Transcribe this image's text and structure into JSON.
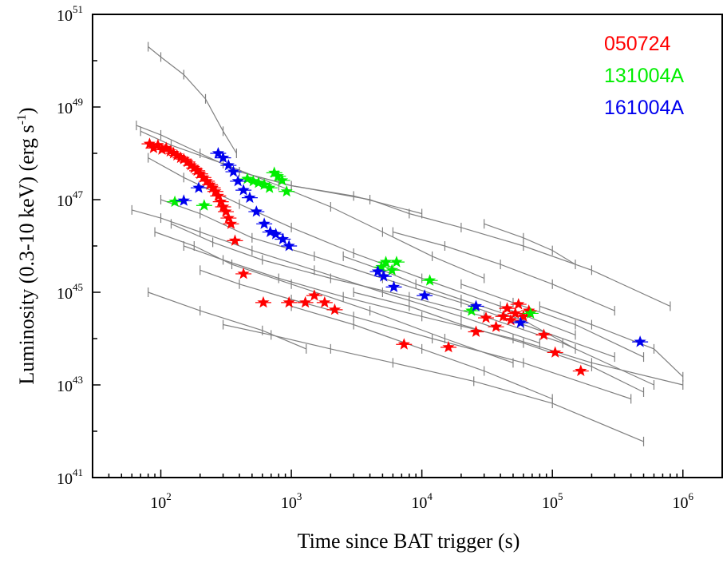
{
  "chart_data": {
    "type": "scatter",
    "xlabel": "Time since BAT trigger (s)",
    "ylabel_parts": {
      "main": "Luminosity  (0.3-10 keV) (erg s",
      "sup": "-1",
      "close": ")"
    },
    "x_scale": "log",
    "y_scale": "log",
    "xlim": [
      30,
      2000000
    ],
    "ylim": [
      1e+41,
      1e+51
    ],
    "x_ticks": [
      {
        "base": "10",
        "exp": "2",
        "value": 100
      },
      {
        "base": "10",
        "exp": "3",
        "value": 1000
      },
      {
        "base": "10",
        "exp": "4",
        "value": 10000
      },
      {
        "base": "10",
        "exp": "5",
        "value": 100000
      },
      {
        "base": "10",
        "exp": "6",
        "value": 1000000
      }
    ],
    "y_ticks": [
      {
        "base": "10",
        "exp": "41",
        "value": 1e+41
      },
      {
        "base": "10",
        "exp": "43",
        "value": 1e+43
      },
      {
        "base": "10",
        "exp": "45",
        "value": 1e+45
      },
      {
        "base": "10",
        "exp": "47",
        "value": 1e+47
      },
      {
        "base": "10",
        "exp": "49",
        "value": 1e+49
      },
      {
        "base": "10",
        "exp": "51",
        "value": 1e+51
      }
    ],
    "grid": false,
    "legend_position": "top-right",
    "colors": {
      "background_lightcurves": "#808080",
      "050724": "#ff0000",
      "131004A": "#00ee00",
      "161004A": "#0000ee"
    },
    "background_lightcurves": [
      {
        "x": [
          80,
          100,
          150,
          220,
          300,
          380
        ],
        "y": [
          2e+50,
          1.2e+50,
          5e+49,
          1.5e+49,
          3e+48,
          1e+48
        ]
      },
      {
        "x": [
          65,
          100,
          200,
          400,
          1000,
          3000,
          10000
        ],
        "y": [
          4e+48,
          2.5e+48,
          1e+48,
          4e+47,
          2e+47,
          1.2e+47,
          5e+46
        ]
      },
      {
        "x": [
          70,
          120,
          300,
          800,
          2000,
          5000,
          12000,
          30000
        ],
        "y": [
          3e+48,
          1.5e+48,
          6e+47,
          2e+47,
          7e+46,
          2e+46,
          6e+45,
          2e+45
        ]
      },
      {
        "x": [
          60,
          100,
          200,
          500,
          1500,
          5000,
          20000,
          80000
        ],
        "y": [
          6e+46,
          4e+46,
          2e+46,
          8e+45,
          3e+45,
          1e+45,
          3e+44,
          8e+43
        ]
      },
      {
        "x": [
          80,
          150,
          400,
          1000,
          3000,
          10000,
          40000,
          150000
        ],
        "y": [
          8e+47,
          3e+47,
          8e+46,
          2.5e+46,
          7e+45,
          2e+45,
          5e+44,
          1.2e+44
        ]
      },
      {
        "x": [
          100,
          200,
          500,
          1500,
          5000,
          20000,
          60000,
          300000
        ],
        "y": [
          1e+47,
          5e+46,
          1.5e+46,
          6e+45,
          2e+45,
          6e+44,
          2e+44,
          4e+43
        ]
      },
      {
        "x": [
          90,
          180,
          350,
          1000,
          4000,
          15000,
          50000
        ],
        "y": [
          2e+46,
          1e+46,
          4e+45,
          1.5e+45,
          4e+44,
          1e+44,
          3e+43
        ]
      },
      {
        "x": [
          120,
          250,
          600,
          2000,
          8000,
          30000,
          120000,
          600000
        ],
        "y": [
          3e+46,
          1.2e+46,
          5e+45,
          2e+45,
          8e+44,
          3e+44,
          8e+43,
          1e+43
        ]
      },
      {
        "x": [
          150,
          300,
          800,
          2500,
          10000,
          50000,
          200000,
          1000000
        ],
        "y": [
          1e+46,
          5e+45,
          2e+45,
          8e+44,
          3e+44,
          1e+44,
          3e+43,
          1e+43
        ]
      },
      {
        "x": [
          200,
          400,
          1000,
          3000,
          12000,
          60000,
          400000
        ],
        "y": [
          3e+45,
          1.5e+45,
          7e+44,
          3e+44,
          1e+44,
          3e+43,
          5e+42
        ]
      },
      {
        "x": [
          300,
          700,
          2000,
          6000,
          25000,
          100000,
          500000
        ],
        "y": [
          2e+44,
          1.2e+44,
          6e+43,
          3e+43,
          1.2e+43,
          4e+42,
          6e+41
        ]
      },
      {
        "x": [
          80,
          200,
          600,
          1300
        ],
        "y": [
          1e+45,
          4e+44,
          1.5e+44,
          6e+43
        ]
      },
      {
        "x": [
          400,
          1000,
          4000,
          8000,
          20000,
          60000,
          200000,
          800000
        ],
        "y": [
          4e+47,
          2e+47,
          1e+47,
          5e+46,
          2.5e+46,
          1e+46,
          3e+45,
          5e+44
        ]
      },
      {
        "x": [
          2500,
          5000,
          9000,
          20000,
          60000,
          150000
        ],
        "y": [
          6e+45,
          3e+45,
          1.5e+45,
          7e+44,
          2.5e+44,
          6e+43
        ]
      },
      {
        "x": [
          6000,
          15000,
          40000,
          100000,
          300000
        ],
        "y": [
          2e+46,
          1e+46,
          4e+45,
          1.5e+45,
          4e+44
        ]
      },
      {
        "x": [
          30000,
          60000,
          100000,
          150000
        ],
        "y": [
          3e+46,
          1.5e+46,
          8e+45,
          4e+45
        ]
      },
      {
        "x": [
          1000,
          3000,
          10000,
          30000,
          100000
        ],
        "y": [
          5e+44,
          2e+44,
          6e+43,
          2e+43,
          5e+42
        ]
      },
      {
        "x": [
          3000,
          8000,
          20000,
          60000,
          200000,
          500000
        ],
        "y": [
          1e+45,
          5e+44,
          2e+44,
          8e+43,
          2.5e+43,
          7e+42
        ]
      },
      {
        "x": [
          20000,
          50000,
          150000,
          500000
        ],
        "y": [
          1.5e+45,
          6e+44,
          2e+44,
          4e+43
        ]
      },
      {
        "x": [
          80000,
          200000,
          600000,
          1000000
        ],
        "y": [
          5e+44,
          2e+44,
          6e+43,
          1.5e+43
        ]
      }
    ],
    "series": [
      {
        "name": "050724",
        "color": "#ff0000",
        "points": [
          {
            "x": 82,
            "y": 1.6e+48
          },
          {
            "x": 88,
            "y": 1.3e+48
          },
          {
            "x": 95,
            "y": 1.5e+48
          },
          {
            "x": 102,
            "y": 1.2e+48
          },
          {
            "x": 110,
            "y": 1.3e+48
          },
          {
            "x": 118,
            "y": 1.1e+48
          },
          {
            "x": 125,
            "y": 1e+48
          },
          {
            "x": 133,
            "y": 9e+47
          },
          {
            "x": 142,
            "y": 8e+47
          },
          {
            "x": 150,
            "y": 7.5e+47
          },
          {
            "x": 160,
            "y": 6.5e+47
          },
          {
            "x": 170,
            "y": 5.5e+47
          },
          {
            "x": 180,
            "y": 4.8e+47
          },
          {
            "x": 190,
            "y": 4.2e+47
          },
          {
            "x": 200,
            "y": 3.6e+47
          },
          {
            "x": 212,
            "y": 3e+47
          },
          {
            "x": 225,
            "y": 2.5e+47
          },
          {
            "x": 238,
            "y": 2.1e+47
          },
          {
            "x": 250,
            "y": 1.8e+47
          },
          {
            "x": 262,
            "y": 1.5e+47
          },
          {
            "x": 275,
            "y": 1.2e+47
          },
          {
            "x": 288,
            "y": 9e+46
          },
          {
            "x": 300,
            "y": 7e+46
          },
          {
            "x": 315,
            "y": 5.5e+46
          },
          {
            "x": 330,
            "y": 4e+46
          },
          {
            "x": 345,
            "y": 3e+46
          },
          {
            "x": 370,
            "y": 1.3e+46
          },
          {
            "x": 430,
            "y": 2.5e+45
          },
          {
            "x": 610,
            "y": 6e+44
          },
          {
            "x": 960,
            "y": 6e+44
          },
          {
            "x": 1280,
            "y": 6e+44
          },
          {
            "x": 1500,
            "y": 8.5e+44
          },
          {
            "x": 1800,
            "y": 6e+44
          },
          {
            "x": 2150,
            "y": 4.2e+44
          },
          {
            "x": 7300,
            "y": 7.5e+43
          },
          {
            "x": 16000,
            "y": 6.5e+43
          },
          {
            "x": 26000,
            "y": 1.4e+44
          },
          {
            "x": 31000,
            "y": 2.8e+44
          },
          {
            "x": 37000,
            "y": 1.8e+44
          },
          {
            "x": 42000,
            "y": 3e+44
          },
          {
            "x": 45000,
            "y": 4.5e+44
          },
          {
            "x": 48000,
            "y": 2.5e+44
          },
          {
            "x": 52000,
            "y": 3.5e+44
          },
          {
            "x": 55000,
            "y": 5.5e+44
          },
          {
            "x": 60000,
            "y": 3e+44
          },
          {
            "x": 66000,
            "y": 4e+44
          },
          {
            "x": 86000,
            "y": 1.2e+44
          },
          {
            "x": 105000,
            "y": 5e+43
          },
          {
            "x": 165000,
            "y": 2e+43
          }
        ]
      },
      {
        "name": "131004A",
        "color": "#00ee00",
        "points": [
          {
            "x": 128,
            "y": 9e+46
          },
          {
            "x": 215,
            "y": 7.5e+46
          },
          {
            "x": 460,
            "y": 2.8e+47
          },
          {
            "x": 510,
            "y": 2.5e+47
          },
          {
            "x": 560,
            "y": 2.3e+47
          },
          {
            "x": 620,
            "y": 2.1e+47
          },
          {
            "x": 680,
            "y": 1.8e+47
          },
          {
            "x": 740,
            "y": 3.8e+47
          },
          {
            "x": 790,
            "y": 3.2e+47
          },
          {
            "x": 850,
            "y": 2.6e+47
          },
          {
            "x": 920,
            "y": 1.5e+47
          },
          {
            "x": 4900,
            "y": 3.5e+45
          },
          {
            "x": 5300,
            "y": 4.5e+45
          },
          {
            "x": 5900,
            "y": 3e+45
          },
          {
            "x": 6400,
            "y": 4.5e+45
          },
          {
            "x": 11500,
            "y": 1.8e+45
          },
          {
            "x": 24000,
            "y": 4e+44
          },
          {
            "x": 68000,
            "y": 3.5e+44
          }
        ]
      },
      {
        "name": "161004A",
        "color": "#0000ee",
        "points": [
          {
            "x": 150,
            "y": 9.5e+46
          },
          {
            "x": 195,
            "y": 1.8e+47
          },
          {
            "x": 275,
            "y": 1e+48
          },
          {
            "x": 300,
            "y": 8e+47
          },
          {
            "x": 330,
            "y": 5.5e+47
          },
          {
            "x": 360,
            "y": 4e+47
          },
          {
            "x": 390,
            "y": 2.5e+47
          },
          {
            "x": 430,
            "y": 1.6e+47
          },
          {
            "x": 480,
            "y": 1.1e+47
          },
          {
            "x": 540,
            "y": 5.5e+46
          },
          {
            "x": 620,
            "y": 3e+46
          },
          {
            "x": 690,
            "y": 2e+46
          },
          {
            "x": 760,
            "y": 1.8e+46
          },
          {
            "x": 860,
            "y": 1.4e+46
          },
          {
            "x": 960,
            "y": 1e+46
          },
          {
            "x": 4600,
            "y": 2.8e+45
          },
          {
            "x": 5100,
            "y": 2.2e+45
          },
          {
            "x": 6100,
            "y": 1.3e+45
          },
          {
            "x": 10500,
            "y": 8.5e+44
          },
          {
            "x": 26000,
            "y": 5e+44
          },
          {
            "x": 57000,
            "y": 2.2e+44
          },
          {
            "x": 470000,
            "y": 8.5e+43
          }
        ]
      }
    ]
  }
}
